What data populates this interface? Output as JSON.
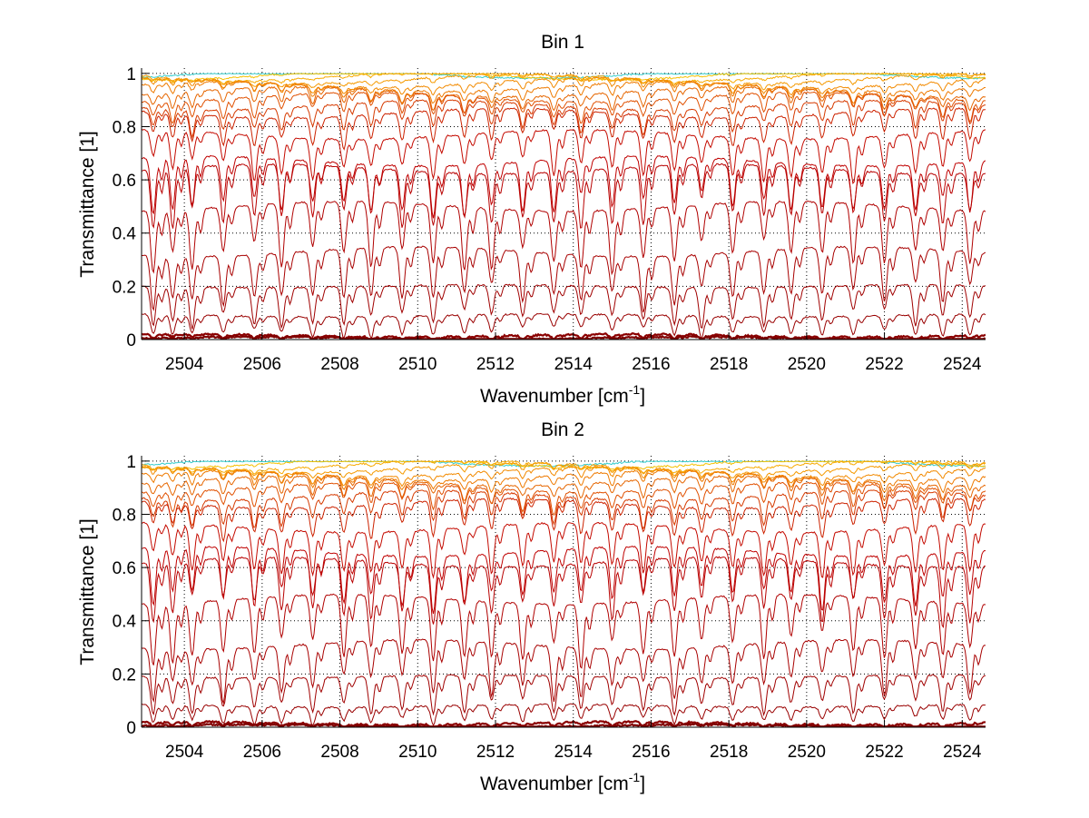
{
  "figure": {
    "background": "#ffffff"
  },
  "chart_data": [
    {
      "type": "line",
      "title": "Bin 1",
      "xlabel": "Wavenumber [cm",
      "xlabel_sup": "-1",
      "xlabel_close": "]",
      "ylabel": "Transmittance [1]",
      "xlim": [
        2502.9,
        2524.6
      ],
      "ylim": [
        0,
        1.02
      ],
      "xticks": [
        2504,
        2506,
        2508,
        2510,
        2512,
        2514,
        2516,
        2518,
        2520,
        2522,
        2524
      ],
      "yticks": [
        0,
        0.2,
        0.4,
        0.6,
        0.8,
        1
      ],
      "ytick_labels": [
        "0",
        "0.2",
        "0.4",
        "0.6",
        "0.8",
        "1"
      ],
      "grid": true,
      "series_baselines": [
        0.005,
        0.015,
        0.09,
        0.2,
        0.33,
        0.5,
        0.64,
        0.67,
        0.77,
        0.85,
        0.88,
        0.91,
        0.93,
        0.95,
        0.965,
        0.98,
        0.99,
        0.995,
        1.0
      ],
      "series_colors": [
        "#7f0000",
        "#8b0000",
        "#990000",
        "#a00000",
        "#a80000",
        "#b00000",
        "#b80000",
        "#bf0000",
        "#c40a00",
        "#cc2200",
        "#d63a00",
        "#e05000",
        "#e66600",
        "#ee7a00",
        "#f28a00",
        "#f59a00",
        "#f7aa00",
        "#f5c000",
        "#33cccc"
      ],
      "absorption_line_centers": [
        2503.2,
        2503.7,
        2504.2,
        2505.0,
        2505.8,
        2506.5,
        2507.3,
        2508.1,
        2508.8,
        2509.6,
        2510.4,
        2511.2,
        2511.9,
        2512.7,
        2513.5,
        2514.2,
        2515.0,
        2515.8,
        2516.6,
        2517.3,
        2518.1,
        2518.9,
        2519.6,
        2520.4,
        2521.2,
        2522.0,
        2522.8,
        2523.5,
        2524.2
      ]
    },
    {
      "type": "line",
      "title": "Bin 2",
      "xlabel": "Wavenumber [cm",
      "xlabel_sup": "-1",
      "xlabel_close": "]",
      "ylabel": "Transmittance [1]",
      "xlim": [
        2502.9,
        2524.6
      ],
      "ylim": [
        0,
        1.02
      ],
      "xticks": [
        2504,
        2506,
        2508,
        2510,
        2512,
        2514,
        2516,
        2518,
        2520,
        2522,
        2524
      ],
      "yticks": [
        0,
        0.2,
        0.4,
        0.6,
        0.8,
        1
      ],
      "ytick_labels": [
        "0",
        "0.2",
        "0.4",
        "0.6",
        "0.8",
        "1"
      ],
      "grid": true,
      "series_baselines": [
        0.005,
        0.015,
        0.08,
        0.19,
        0.31,
        0.48,
        0.62,
        0.66,
        0.75,
        0.84,
        0.87,
        0.9,
        0.925,
        0.945,
        0.96,
        0.975,
        0.985,
        0.993,
        1.0
      ],
      "series_colors": [
        "#7f0000",
        "#8b0000",
        "#990000",
        "#a00000",
        "#a80000",
        "#b00000",
        "#b80000",
        "#bf0000",
        "#c40a00",
        "#cc2200",
        "#d63a00",
        "#e05000",
        "#e66600",
        "#ee7a00",
        "#f28a00",
        "#f59a00",
        "#f7aa00",
        "#f5c000",
        "#33cccc"
      ],
      "absorption_line_centers": [
        2503.2,
        2503.7,
        2504.2,
        2505.0,
        2505.8,
        2506.5,
        2507.3,
        2508.1,
        2508.8,
        2509.6,
        2510.4,
        2511.2,
        2511.9,
        2512.7,
        2513.5,
        2514.2,
        2515.0,
        2515.8,
        2516.6,
        2517.3,
        2518.1,
        2518.9,
        2519.6,
        2520.4,
        2521.2,
        2522.0,
        2522.8,
        2523.5,
        2524.2
      ]
    }
  ]
}
